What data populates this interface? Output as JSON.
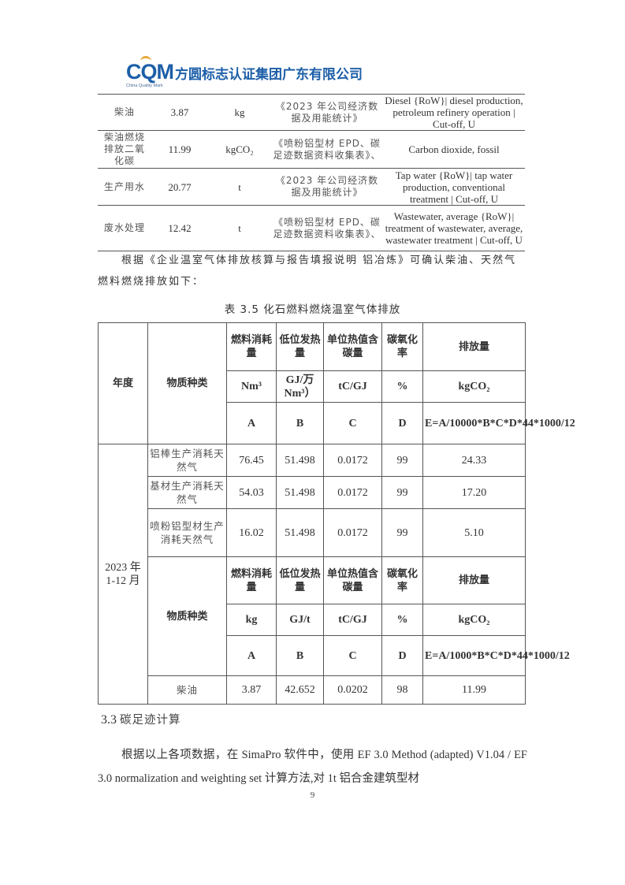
{
  "header": {
    "logo_text": "CQM",
    "logo_subtitle": "China Quality Mark",
    "company_name": "方圆标志认证集团广东有限公司",
    "brand_color": "#1d5fa8"
  },
  "table1": {
    "rows": [
      {
        "name": "柴油",
        "value": "3.87",
        "unit": "kg",
        "source": "《2023 年公司经济数据及用能统计》",
        "dataset": "Diesel {RoW}| diesel production, petroleum refinery operation | Cut-off, U"
      },
      {
        "name": "柴油燃烧排放二氧化碳",
        "value": "11.99",
        "unit": "kgCO₂",
        "source": "《喷粉铝型材 EPD、碳足迹数据资料收集表》、",
        "dataset": "Carbon dioxide, fossil"
      },
      {
        "name": "生产用水",
        "value": "20.77",
        "unit": "t",
        "source": "《2023 年公司经济数据及用能统计》",
        "dataset": "Tap water {RoW}| tap water production, conventional treatment | Cut-off, U"
      },
      {
        "name": "废水处理",
        "value": "12.42",
        "unit": "t",
        "source": "《喷粉铝型材 EPD、碳足迹数据资料收集表》、",
        "dataset": "Wastewater, average {RoW}| treatment of wastewater, average, wastewater treatment | Cut-off, U"
      }
    ]
  },
  "paragraph1": "根据《企业温室气体排放核算与报告填报说明 铝冶炼》可确认柴油、天然气燃料燃烧排放如下：",
  "table2": {
    "caption": "表 3.5 化石燃料燃烧温室气体排放",
    "col_year": "年度",
    "col_material": "物质种类",
    "headers": [
      "燃料消耗量",
      "低位发热量",
      "单位热值含碳量",
      "碳氧化率",
      "排放量"
    ],
    "units_gas": [
      "Nm³",
      "GJ/万Nm³）",
      "tC/GJ",
      "%",
      "kgCO₂"
    ],
    "symbols": [
      "A",
      "B",
      "C",
      "D"
    ],
    "formula_gas": "E=A/10000*B*C*D*44*1000/12",
    "year": "2023 年 1-12 月",
    "gas_rows": [
      {
        "name": "铝棒生产消耗天然气",
        "values": [
          "76.45",
          "51.498",
          "0.0172",
          "99",
          "24.33"
        ]
      },
      {
        "name": "基材生产消耗天然气",
        "values": [
          "54.03",
          "51.498",
          "0.0172",
          "99",
          "17.20"
        ]
      },
      {
        "name": "喷粉铝型材生产消耗天然气",
        "values": [
          "16.02",
          "51.498",
          "0.0172",
          "99",
          "5.10"
        ]
      }
    ],
    "units_diesel": [
      "kg",
      "GJ/t",
      "tC/GJ",
      "%",
      "kgCO₂"
    ],
    "formula_diesel": "E=A/1000*B*C*D*44*1000/12",
    "diesel_row": {
      "name": "柴油",
      "values": [
        "3.87",
        "42.652",
        "0.0202",
        "98",
        "11.99"
      ]
    }
  },
  "section": {
    "number": "3.3",
    "title": "碳足迹计算"
  },
  "paragraph2": "根据以上各项数据，在 SimaPro 软件中，使用 EF 3.0 Method (adapted) V1.04 / EF 3.0 normalization and weighting set 计算方法,对 1t 铝合金建筑型材",
  "page_number": "9"
}
